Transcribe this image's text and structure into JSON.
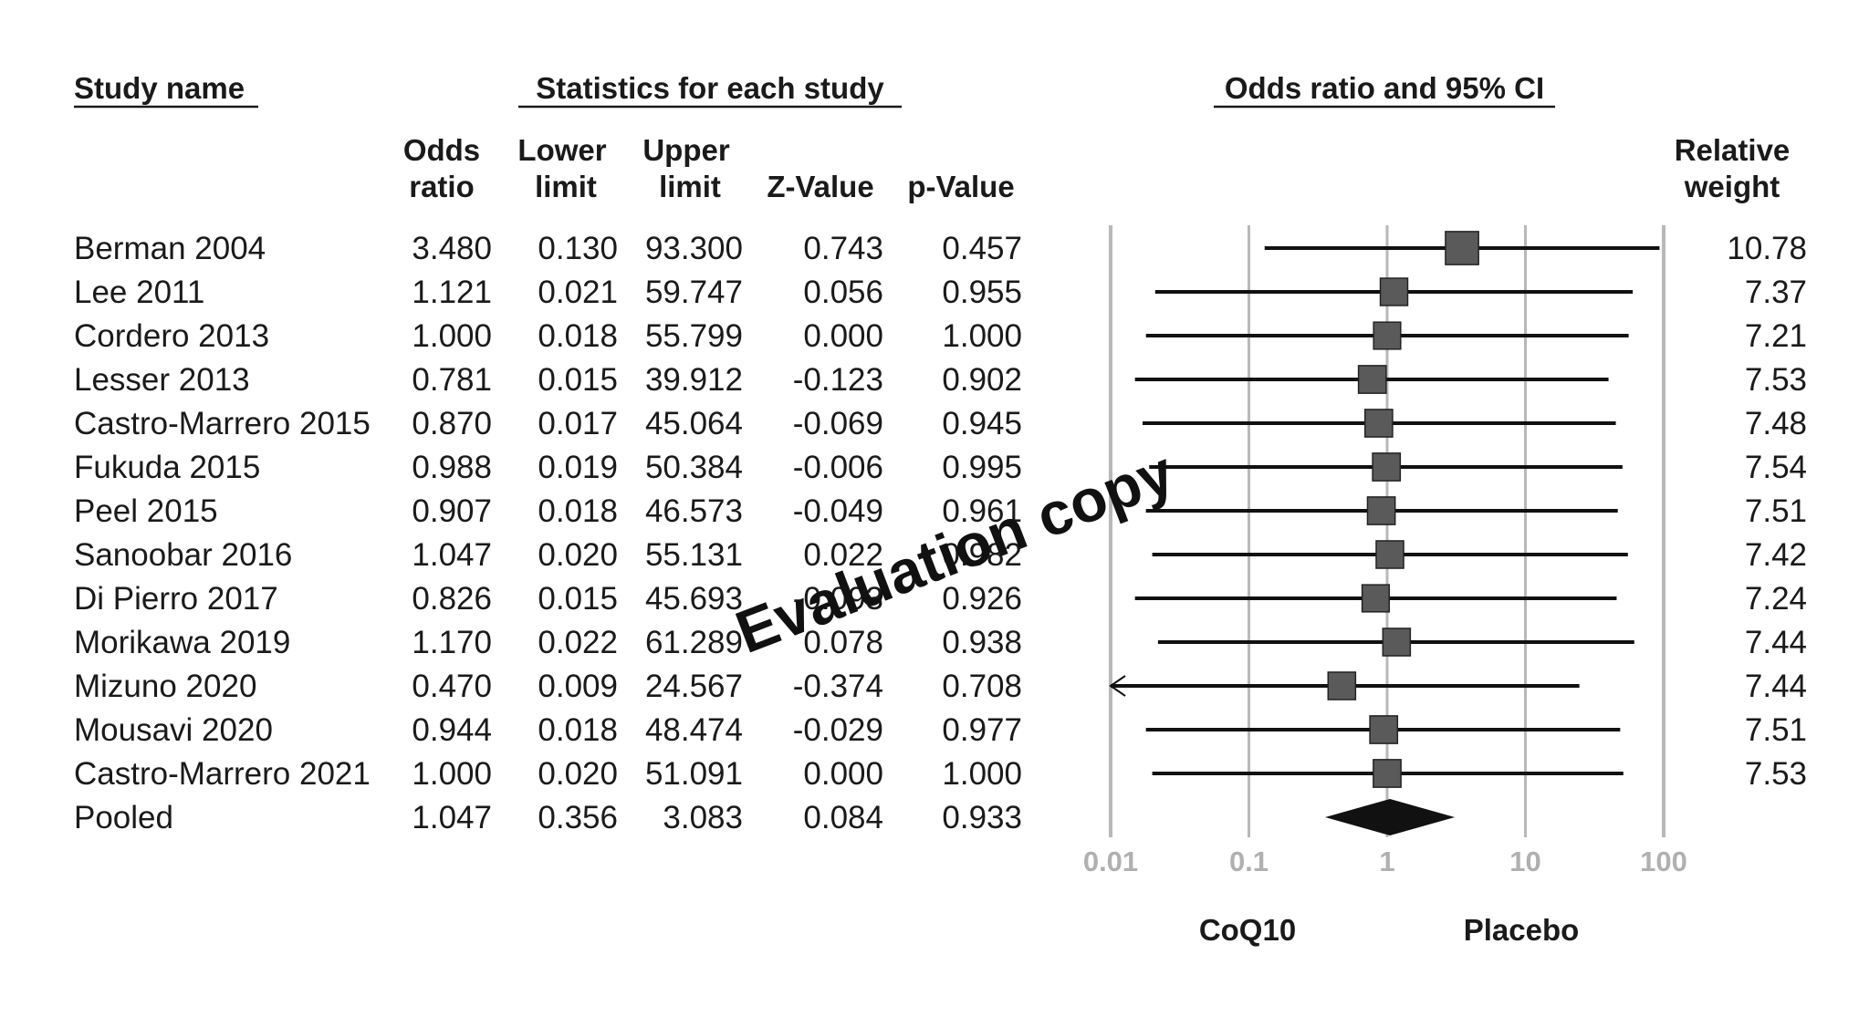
{
  "headers": {
    "study_name": "Study name",
    "statistics": "Statistics for each study",
    "odds_ci": "Odds ratio and 95% CI",
    "odds_ratio": [
      "Odds",
      "ratio"
    ],
    "lower_limit": [
      "Lower",
      "limit"
    ],
    "upper_limit": [
      "Upper",
      "limit"
    ],
    "z_value": "Z-Value",
    "p_value": "p-Value",
    "relative_weight": [
      "Relative",
      "weight"
    ]
  },
  "watermark": "Evaluation copy",
  "chart_data": {
    "type": "forest",
    "x_scale": "log",
    "xlim": [
      0.01,
      100
    ],
    "x_ticks": [
      0.01,
      0.1,
      1,
      10,
      100
    ],
    "x_tick_labels": [
      "0.01",
      "0.1",
      "1",
      "10",
      "100"
    ],
    "gridlines": true,
    "side_labels": {
      "left": "CoQ10",
      "right": "Placebo"
    },
    "colors": {
      "marker": "#5a5a5a",
      "line": "#111111",
      "grid": "#b8b8b8",
      "tick": "#b0b0b0"
    },
    "studies": [
      {
        "name": "Berman 2004",
        "or": "3.480",
        "lower": "0.130",
        "upper": "93.300",
        "z": "0.743",
        "p": "0.457",
        "weight": "10.78",
        "or_v": 3.48,
        "lo_v": 0.13,
        "hi_v": 93.3,
        "w_v": 10.78,
        "clipped_low": false
      },
      {
        "name": "Lee 2011",
        "or": "1.121",
        "lower": "0.021",
        "upper": "59.747",
        "z": "0.056",
        "p": "0.955",
        "weight": "7.37",
        "or_v": 1.121,
        "lo_v": 0.021,
        "hi_v": 59.747,
        "w_v": 7.37,
        "clipped_low": false
      },
      {
        "name": "Cordero 2013",
        "or": "1.000",
        "lower": "0.018",
        "upper": "55.799",
        "z": "0.000",
        "p": "1.000",
        "weight": "7.21",
        "or_v": 1.0,
        "lo_v": 0.018,
        "hi_v": 55.799,
        "w_v": 7.21,
        "clipped_low": false
      },
      {
        "name": "Lesser 2013",
        "or": "0.781",
        "lower": "0.015",
        "upper": "39.912",
        "z": "-0.123",
        "p": "0.902",
        "weight": "7.53",
        "or_v": 0.781,
        "lo_v": 0.015,
        "hi_v": 39.912,
        "w_v": 7.53,
        "clipped_low": false
      },
      {
        "name": "Castro-Marrero 2015",
        "or": "0.870",
        "lower": "0.017",
        "upper": "45.064",
        "z": "-0.069",
        "p": "0.945",
        "weight": "7.48",
        "or_v": 0.87,
        "lo_v": 0.017,
        "hi_v": 45.064,
        "w_v": 7.48,
        "clipped_low": false
      },
      {
        "name": "Fukuda 2015",
        "or": "0.988",
        "lower": "0.019",
        "upper": "50.384",
        "z": "-0.006",
        "p": "0.995",
        "weight": "7.54",
        "or_v": 0.988,
        "lo_v": 0.019,
        "hi_v": 50.384,
        "w_v": 7.54,
        "clipped_low": false
      },
      {
        "name": "Peel 2015",
        "or": "0.907",
        "lower": "0.018",
        "upper": "46.573",
        "z": "-0.049",
        "p": "0.961",
        "weight": "7.51",
        "or_v": 0.907,
        "lo_v": 0.018,
        "hi_v": 46.573,
        "w_v": 7.51,
        "clipped_low": false
      },
      {
        "name": "Sanoobar 2016",
        "or": "1.047",
        "lower": "0.020",
        "upper": "55.131",
        "z": "0.022",
        "p": "0.982",
        "weight": "7.42",
        "or_v": 1.047,
        "lo_v": 0.02,
        "hi_v": 55.131,
        "w_v": 7.42,
        "clipped_low": false
      },
      {
        "name": "Di Pierro 2017",
        "or": "0.826",
        "lower": "0.015",
        "upper": "45.693",
        "z": "-0.093",
        "p": "0.926",
        "weight": "7.24",
        "or_v": 0.826,
        "lo_v": 0.015,
        "hi_v": 45.693,
        "w_v": 7.24,
        "clipped_low": false
      },
      {
        "name": "Morikawa 2019",
        "or": "1.170",
        "lower": "0.022",
        "upper": "61.289",
        "z": "0.078",
        "p": "0.938",
        "weight": "7.44",
        "or_v": 1.17,
        "lo_v": 0.022,
        "hi_v": 61.289,
        "w_v": 7.44,
        "clipped_low": false
      },
      {
        "name": "Mizuno 2020",
        "or": "0.470",
        "lower": "0.009",
        "upper": "24.567",
        "z": "-0.374",
        "p": "0.708",
        "weight": "7.44",
        "or_v": 0.47,
        "lo_v": 0.009,
        "hi_v": 24.567,
        "w_v": 7.44,
        "clipped_low": true
      },
      {
        "name": "Mousavi 2020",
        "or": "0.944",
        "lower": "0.018",
        "upper": "48.474",
        "z": "-0.029",
        "p": "0.977",
        "weight": "7.51",
        "or_v": 0.944,
        "lo_v": 0.018,
        "hi_v": 48.474,
        "w_v": 7.51,
        "clipped_low": false
      },
      {
        "name": "Castro-Marrero 2021",
        "or": "1.000",
        "lower": "0.020",
        "upper": "51.091",
        "z": "0.000",
        "p": "1.000",
        "weight": "7.53",
        "or_v": 1.0,
        "lo_v": 0.02,
        "hi_v": 51.091,
        "w_v": 7.53,
        "clipped_low": false
      }
    ],
    "pooled": {
      "name": "Pooled",
      "or": "1.047",
      "lower": "0.356",
      "upper": "3.083",
      "z": "0.084",
      "p": "0.933",
      "or_v": 1.047,
      "lo_v": 0.356,
      "hi_v": 3.083
    }
  }
}
